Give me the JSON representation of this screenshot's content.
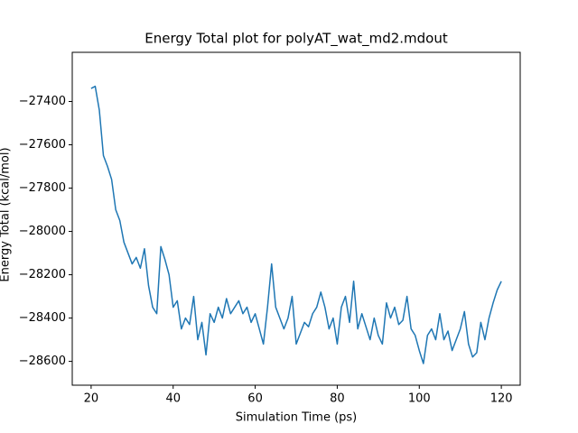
{
  "chart_data": {
    "type": "line",
    "title": "Energy Total plot for polyAT_wat_md2.mdout",
    "xlabel": "Simulation Time (ps)",
    "ylabel": "Energy Total (kcal/mol)",
    "color": "#1f77b4",
    "grid": false,
    "x": [
      20,
      21,
      22,
      23,
      24,
      25,
      26,
      27,
      28,
      29,
      30,
      31,
      32,
      33,
      34,
      35,
      36,
      37,
      38,
      39,
      40,
      41,
      42,
      43,
      44,
      45,
      46,
      47,
      48,
      49,
      50,
      51,
      52,
      53,
      54,
      55,
      56,
      57,
      58,
      59,
      60,
      61,
      62,
      63,
      64,
      65,
      66,
      67,
      68,
      69,
      70,
      71,
      72,
      73,
      74,
      75,
      76,
      77,
      78,
      79,
      80,
      81,
      82,
      83,
      84,
      85,
      86,
      87,
      88,
      89,
      90,
      91,
      92,
      93,
      94,
      95,
      96,
      97,
      98,
      99,
      100,
      101,
      102,
      103,
      104,
      105,
      106,
      107,
      108,
      109,
      110,
      111,
      112,
      113,
      114,
      115,
      116,
      117,
      118,
      119,
      120
    ],
    "values": [
      -27340,
      -27330,
      -27440,
      -27650,
      -27700,
      -27760,
      -27900,
      -27950,
      -28050,
      -28100,
      -28150,
      -28120,
      -28170,
      -28080,
      -28250,
      -28350,
      -28380,
      -28070,
      -28130,
      -28200,
      -28350,
      -28320,
      -28450,
      -28400,
      -28430,
      -28300,
      -28500,
      -28420,
      -28570,
      -28380,
      -28420,
      -28350,
      -28400,
      -28310,
      -28380,
      -28350,
      -28320,
      -28380,
      -28350,
      -28420,
      -28380,
      -28450,
      -28520,
      -28350,
      -28150,
      -28350,
      -28400,
      -28450,
      -28400,
      -28300,
      -28520,
      -28470,
      -28420,
      -28440,
      -28380,
      -28350,
      -28280,
      -28350,
      -28450,
      -28400,
      -28520,
      -28350,
      -28300,
      -28420,
      -28230,
      -28450,
      -28380,
      -28440,
      -28500,
      -28400,
      -28480,
      -28520,
      -28330,
      -28400,
      -28350,
      -28430,
      -28410,
      -28300,
      -28450,
      -28480,
      -28550,
      -28610,
      -28480,
      -28450,
      -28500,
      -28380,
      -28500,
      -28460,
      -28550,
      -28500,
      -28450,
      -28370,
      -28520,
      -28580,
      -28560,
      -28420,
      -28500,
      -28400,
      -28330,
      -28270,
      -28230
    ],
    "xlim": [
      15.4,
      124.6
    ],
    "ylim": [
      -28710,
      -27173
    ],
    "xticks": [
      20,
      40,
      60,
      80,
      100,
      120
    ],
    "yticks": [
      {
        "value": -28600,
        "label": "−28600"
      },
      {
        "value": -28400,
        "label": "−28400"
      },
      {
        "value": -28200,
        "label": "−28200"
      },
      {
        "value": -28000,
        "label": "−28000"
      },
      {
        "value": -27800,
        "label": "−27800"
      },
      {
        "value": -27600,
        "label": "−27600"
      },
      {
        "value": -27400,
        "label": "−27400"
      }
    ]
  }
}
